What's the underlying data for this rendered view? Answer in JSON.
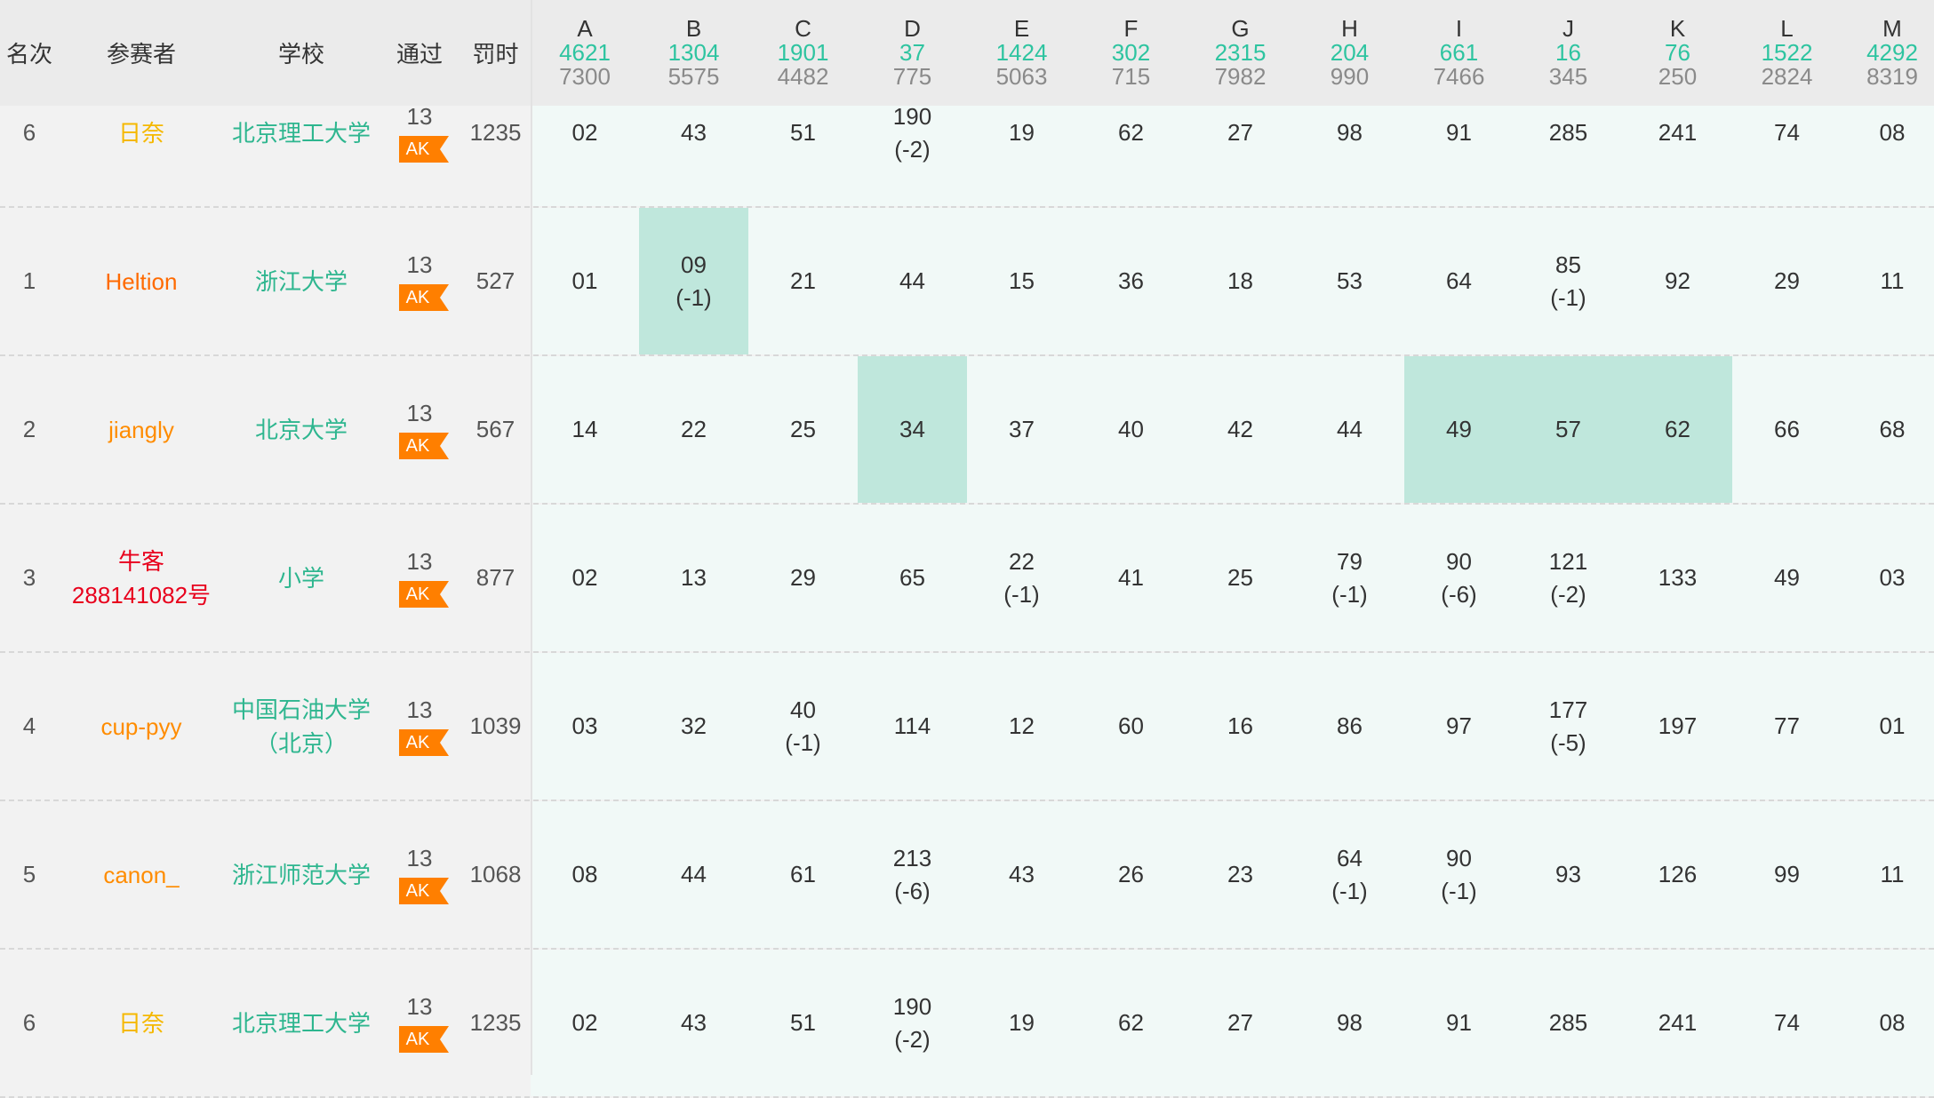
{
  "header": {
    "rank": "名次",
    "contestant": "参赛者",
    "school": "学校",
    "solved": "通过",
    "penalty": "罚时"
  },
  "problems": [
    {
      "letter": "A",
      "accepted": "4621",
      "tried": "7300"
    },
    {
      "letter": "B",
      "accepted": "1304",
      "tried": "5575"
    },
    {
      "letter": "C",
      "accepted": "1901",
      "tried": "4482"
    },
    {
      "letter": "D",
      "accepted": "37",
      "tried": "775"
    },
    {
      "letter": "E",
      "accepted": "1424",
      "tried": "5063"
    },
    {
      "letter": "F",
      "accepted": "302",
      "tried": "715"
    },
    {
      "letter": "G",
      "accepted": "2315",
      "tried": "7982"
    },
    {
      "letter": "H",
      "accepted": "204",
      "tried": "990"
    },
    {
      "letter": "I",
      "accepted": "661",
      "tried": "7466"
    },
    {
      "letter": "J",
      "accepted": "16",
      "tried": "345"
    },
    {
      "letter": "K",
      "accepted": "76",
      "tried": "250"
    },
    {
      "letter": "L",
      "accepted": "1522",
      "tried": "2824"
    },
    {
      "letter": "M",
      "accepted": "4292",
      "tried": "8319"
    }
  ],
  "colors": {
    "accent": "#2ec4a0",
    "first_blood": "#bfe7dc",
    "ak_badge": "#ff7f00",
    "name_orange": "#ff8c00",
    "name_gold": "#f5b800",
    "name_red": "#e8001c",
    "school_green": "#2eb68f"
  },
  "ak_badge": "AK",
  "rows": [
    {
      "rank": "6",
      "name": "日奈",
      "name_color": "#f5b800",
      "school": "北京理工大学",
      "solved": "13",
      "penalty": "1235",
      "cells": [
        {
          "t": "02"
        },
        {
          "t": "43"
        },
        {
          "t": "51"
        },
        {
          "t": "190",
          "p": "(-2)"
        },
        {
          "t": "19"
        },
        {
          "t": "62"
        },
        {
          "t": "27"
        },
        {
          "t": "98"
        },
        {
          "t": "91"
        },
        {
          "t": "285"
        },
        {
          "t": "241"
        },
        {
          "t": "74"
        },
        {
          "t": "08"
        }
      ]
    },
    {
      "rank": "1",
      "name": "Heltion",
      "name_color": "#ff6a00",
      "school": "浙江大学",
      "solved": "13",
      "penalty": "527",
      "cells": [
        {
          "t": "01"
        },
        {
          "t": "09",
          "p": "(-1)",
          "fb": true
        },
        {
          "t": "21"
        },
        {
          "t": "44"
        },
        {
          "t": "15"
        },
        {
          "t": "36"
        },
        {
          "t": "18"
        },
        {
          "t": "53"
        },
        {
          "t": "64"
        },
        {
          "t": "85",
          "p": "(-1)"
        },
        {
          "t": "92"
        },
        {
          "t": "29"
        },
        {
          "t": "11"
        }
      ]
    },
    {
      "rank": "2",
      "name": "jiangly",
      "name_color": "#ff8c00",
      "school": "北京大学",
      "solved": "13",
      "penalty": "567",
      "cells": [
        {
          "t": "14"
        },
        {
          "t": "22"
        },
        {
          "t": "25"
        },
        {
          "t": "34",
          "fb": true
        },
        {
          "t": "37"
        },
        {
          "t": "40"
        },
        {
          "t": "42"
        },
        {
          "t": "44"
        },
        {
          "t": "49",
          "fb": true
        },
        {
          "t": "57",
          "fb": true
        },
        {
          "t": "62",
          "fb": true
        },
        {
          "t": "66"
        },
        {
          "t": "68"
        }
      ]
    },
    {
      "rank": "3",
      "name": "牛客288141082号",
      "name_color": "#e8001c",
      "school": "小学",
      "solved": "13",
      "penalty": "877",
      "cells": [
        {
          "t": "02"
        },
        {
          "t": "13"
        },
        {
          "t": "29"
        },
        {
          "t": "65"
        },
        {
          "t": "22",
          "p": "(-1)"
        },
        {
          "t": "41"
        },
        {
          "t": "25"
        },
        {
          "t": "79",
          "p": "(-1)"
        },
        {
          "t": "90",
          "p": "(-6)"
        },
        {
          "t": "121",
          "p": "(-2)"
        },
        {
          "t": "133"
        },
        {
          "t": "49"
        },
        {
          "t": "03"
        }
      ]
    },
    {
      "rank": "4",
      "name": "cup-pyy",
      "name_color": "#ff8c00",
      "school": "中国石油大学（北京）",
      "solved": "13",
      "penalty": "1039",
      "cells": [
        {
          "t": "03"
        },
        {
          "t": "32"
        },
        {
          "t": "40",
          "p": "(-1)"
        },
        {
          "t": "114"
        },
        {
          "t": "12"
        },
        {
          "t": "60"
        },
        {
          "t": "16"
        },
        {
          "t": "86"
        },
        {
          "t": "97"
        },
        {
          "t": "177",
          "p": "(-5)"
        },
        {
          "t": "197"
        },
        {
          "t": "77"
        },
        {
          "t": "01"
        }
      ]
    },
    {
      "rank": "5",
      "name": "canon_",
      "name_color": "#ff8c00",
      "school": "浙江师范大学",
      "solved": "13",
      "penalty": "1068",
      "cells": [
        {
          "t": "08"
        },
        {
          "t": "44"
        },
        {
          "t": "61"
        },
        {
          "t": "213",
          "p": "(-6)"
        },
        {
          "t": "43"
        },
        {
          "t": "26"
        },
        {
          "t": "23"
        },
        {
          "t": "64",
          "p": "(-1)"
        },
        {
          "t": "90",
          "p": "(-1)"
        },
        {
          "t": "93"
        },
        {
          "t": "126"
        },
        {
          "t": "99"
        },
        {
          "t": "11"
        }
      ]
    },
    {
      "rank": "6",
      "name": "日奈",
      "name_color": "#f5b800",
      "school": "北京理工大学",
      "solved": "13",
      "penalty": "1235",
      "cells": [
        {
          "t": "02"
        },
        {
          "t": "43"
        },
        {
          "t": "51"
        },
        {
          "t": "190",
          "p": "(-2)"
        },
        {
          "t": "19"
        },
        {
          "t": "62"
        },
        {
          "t": "27"
        },
        {
          "t": "98"
        },
        {
          "t": "91"
        },
        {
          "t": "285"
        },
        {
          "t": "241"
        },
        {
          "t": "74"
        },
        {
          "t": "08"
        }
      ]
    }
  ]
}
